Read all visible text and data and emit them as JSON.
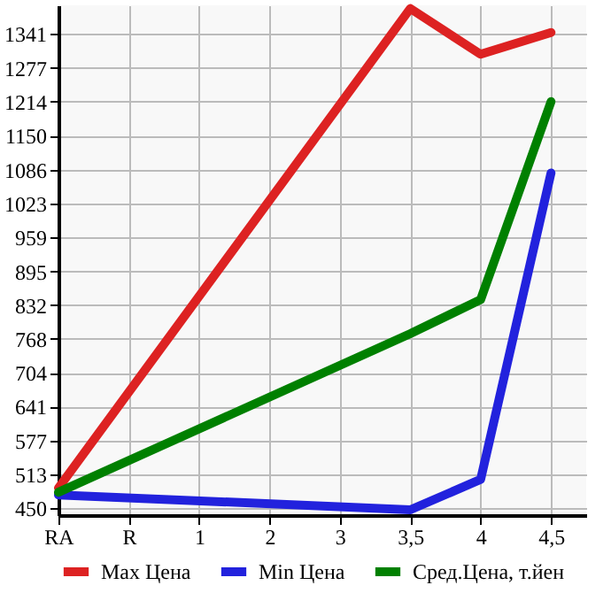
{
  "chart_data": {
    "type": "line",
    "categories": [
      "RA",
      "R",
      "1",
      "2",
      "3",
      "3,5",
      "4",
      "4,5"
    ],
    "series": [
      {
        "name": "Max Цена",
        "color": "#dd2222",
        "x": [
          "RA",
          "3,5",
          "4",
          "4,5"
        ],
        "values": [
          488,
          1389,
          1303,
          1344
        ]
      },
      {
        "name": "Min Цена",
        "color": "#2222dd",
        "x": [
          "RA",
          "3,5",
          "4",
          "4,5"
        ],
        "values": [
          475,
          447,
          504,
          1080
        ]
      },
      {
        "name": "Сред.Цена, т.йен",
        "color": "#008000",
        "x": [
          "RA",
          "3,5",
          "4",
          "4,5"
        ],
        "values": [
          480,
          778,
          842,
          1214
        ]
      }
    ],
    "ylim": [
      437,
      1395
    ],
    "yticks": [
      450,
      513,
      577,
      641,
      704,
      768,
      832,
      895,
      959,
      1023,
      1086,
      1150,
      1214,
      1277,
      1341
    ],
    "grid": true,
    "legend": "bottom",
    "marker": "none",
    "line_style": "solid"
  }
}
